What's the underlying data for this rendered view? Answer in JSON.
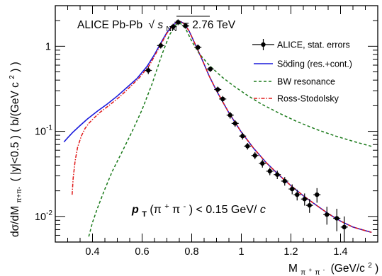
{
  "chart_data": {
    "type": "line",
    "title": "ALICE Pb-Pb √s_NN = 2.76 TeV",
    "title_parts": {
      "prefix": "ALICE Pb-Pb",
      "sqrt_symbol": "√",
      "s": "s",
      "s_sub": "NN",
      "suffix": "= 2.76 TeV"
    },
    "xlabel": "M_π+π- (GeV/c²)",
    "xlabel_parts": {
      "M": "M",
      "sub_pi1": "π",
      "sup_plus": "+",
      "sub_pi2": "π",
      "sup_minus": "-",
      "unit": "(GeV/c",
      "sup_2": "2",
      "close": ")"
    },
    "ylabel": "dσ/dM_π+π- (|y|<0.5) (b/(GeV c²))",
    "ylabel_parts": {
      "a": "dσ/dM",
      "sub": "π+π-",
      "b": "( |y|<0.5 )  ( b/(GeV c",
      "sup": "2",
      "c": ") )"
    },
    "annotation": "p_T(π+π-) < 0.15 GeV/c",
    "annotation_parts": {
      "p": "p",
      "T": "T",
      "paren": "(π",
      "plus": "+",
      "pi": "π",
      "minus": "-",
      "rest": ") < 0.15 GeV/",
      "c": "c"
    },
    "xlim": [
      0.25,
      1.55
    ],
    "ylim": [
      0.005,
      3.0
    ],
    "yscale": "log",
    "x_ticks": [
      "0.4",
      "0.6",
      "0.8",
      "1",
      "1.2",
      "1.4"
    ],
    "x_tick_values": [
      0.4,
      0.6,
      0.8,
      1.0,
      1.2,
      1.4
    ],
    "y_ticks": [
      {
        "value": 1,
        "label": "1",
        "base": "1",
        "exp": ""
      },
      {
        "value": 0.1,
        "label": "10^-1",
        "base": "10",
        "exp": "-1"
      },
      {
        "value": 0.01,
        "label": "10^-2",
        "base": "10",
        "exp": "-2"
      }
    ],
    "legend_position": "top-right",
    "grid": false,
    "series": [
      {
        "name": "ALICE, stat. errors",
        "kind": "points",
        "color": "#000000",
        "x": [
          0.625,
          0.675,
          0.725,
          0.745,
          0.775,
          0.825,
          0.875,
          0.905,
          0.925,
          0.955,
          0.975,
          1.005,
          1.025,
          1.055,
          1.085,
          1.115,
          1.145,
          1.175,
          1.205,
          1.225,
          1.255,
          1.275,
          1.305,
          1.345,
          1.385,
          1.415
        ],
        "y": [
          0.52,
          1.02,
          1.7,
          1.92,
          1.74,
          0.97,
          0.54,
          0.31,
          0.24,
          0.155,
          0.124,
          0.088,
          0.067,
          0.052,
          0.042,
          0.034,
          0.031,
          0.026,
          0.021,
          0.018,
          0.016,
          0.0135,
          0.018,
          0.0105,
          0.0095,
          0.0075
        ],
        "yerr": [
          0.05,
          0.08,
          0.14,
          0.15,
          0.13,
          0.08,
          0.04,
          0.025,
          0.02,
          0.014,
          0.011,
          0.008,
          0.006,
          0.005,
          0.0045,
          0.0035,
          0.0035,
          0.003,
          0.0028,
          0.0026,
          0.0026,
          0.0025,
          0.0035,
          0.0025,
          0.0028,
          0.0025
        ]
      },
      {
        "name": "Söding (res.+cont.)",
        "kind": "solid",
        "color": "#1a1adc",
        "x": [
          0.285,
          0.3,
          0.32,
          0.35,
          0.38,
          0.42,
          0.46,
          0.5,
          0.54,
          0.58,
          0.62,
          0.65,
          0.68,
          0.7,
          0.72,
          0.74,
          0.755,
          0.77,
          0.79,
          0.81,
          0.84,
          0.87,
          0.9,
          0.95,
          1.0,
          1.05,
          1.1,
          1.15,
          1.2,
          1.25,
          1.3,
          1.35,
          1.4,
          1.45,
          1.5,
          1.525
        ],
        "y": [
          0.075,
          0.084,
          0.097,
          0.117,
          0.14,
          0.173,
          0.21,
          0.26,
          0.33,
          0.42,
          0.58,
          0.8,
          1.15,
          1.45,
          1.72,
          1.92,
          1.95,
          1.85,
          1.5,
          1.12,
          0.72,
          0.45,
          0.3,
          0.165,
          0.098,
          0.063,
          0.043,
          0.031,
          0.023,
          0.0175,
          0.0137,
          0.0108,
          0.0088,
          0.0075,
          0.0068,
          0.0065
        ]
      },
      {
        "name": "BW resonance",
        "kind": "dashed",
        "color": "#1a7a1a",
        "x": [
          0.385,
          0.4,
          0.42,
          0.45,
          0.48,
          0.52,
          0.56,
          0.6,
          0.64,
          0.68,
          0.71,
          0.735,
          0.755,
          0.775,
          0.8,
          0.83,
          0.87,
          0.92,
          0.97,
          1.02,
          1.08,
          1.15,
          1.22,
          1.3,
          1.38,
          1.46,
          1.53
        ],
        "y": [
          0.0058,
          0.0085,
          0.0125,
          0.021,
          0.034,
          0.058,
          0.1,
          0.18,
          0.36,
          0.8,
          1.35,
          1.78,
          1.85,
          1.62,
          1.15,
          0.82,
          0.6,
          0.44,
          0.34,
          0.27,
          0.21,
          0.165,
          0.132,
          0.106,
          0.088,
          0.075,
          0.066
        ]
      },
      {
        "name": "Ross-Stodolsky",
        "kind": "dashdot",
        "color": "#e01818",
        "x": [
          0.318,
          0.322,
          0.33,
          0.34,
          0.355,
          0.37,
          0.385,
          0.4,
          0.43,
          0.47,
          0.51,
          0.55,
          0.59,
          0.63,
          0.67,
          0.7,
          0.72,
          0.74,
          0.755,
          0.77,
          0.79,
          0.81,
          0.84,
          0.87,
          0.9,
          0.95,
          1.0,
          1.05,
          1.1,
          1.15,
          1.2,
          1.25,
          1.3,
          1.35,
          1.4,
          1.45,
          1.5,
          1.525
        ],
        "y": [
          0.018,
          0.028,
          0.045,
          0.065,
          0.088,
          0.108,
          0.124,
          0.138,
          0.167,
          0.205,
          0.255,
          0.33,
          0.43,
          0.6,
          0.98,
          1.42,
          1.7,
          1.9,
          1.94,
          1.84,
          1.5,
          1.12,
          0.72,
          0.45,
          0.3,
          0.165,
          0.098,
          0.063,
          0.043,
          0.031,
          0.023,
          0.0175,
          0.0137,
          0.0108,
          0.0088,
          0.0075,
          0.0068,
          0.0065
        ]
      }
    ]
  }
}
